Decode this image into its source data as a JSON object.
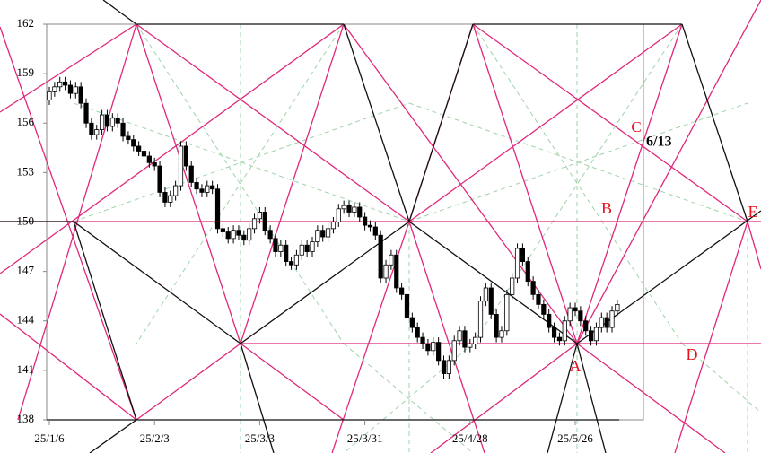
{
  "chart_data": {
    "type": "candlestick",
    "categories": [
      "25/1/6",
      null,
      null,
      null,
      null,
      null,
      null,
      null,
      null,
      null,
      null,
      null,
      null,
      null,
      null,
      null,
      null,
      null,
      null,
      null,
      "25/2/3",
      null,
      null,
      null,
      null,
      null,
      null,
      null,
      null,
      null,
      null,
      null,
      null,
      null,
      null,
      null,
      null,
      null,
      null,
      null,
      "25/3/3",
      null,
      null,
      null,
      null,
      null,
      null,
      null,
      null,
      null,
      null,
      null,
      null,
      null,
      null,
      null,
      null,
      null,
      null,
      null,
      "25/3/31",
      null,
      null,
      null,
      null,
      null,
      null,
      null,
      null,
      null,
      null,
      null,
      null,
      null,
      null,
      null,
      null,
      null,
      null,
      null,
      "25/4/28",
      null,
      null,
      null,
      null,
      null,
      null,
      null,
      null,
      null,
      null,
      null,
      null,
      null,
      null,
      null,
      null,
      null,
      null,
      null,
      "25/5/26",
      null,
      null,
      null,
      null,
      null,
      null,
      null,
      null
    ],
    "open": [
      157.4,
      157.9,
      158.2,
      158.5,
      158.3,
      157.8,
      158.2,
      157.2,
      156.0,
      155.3,
      155.6,
      156.5,
      155.8,
      156.3,
      156.0,
      155.2,
      155.0,
      154.6,
      154.3,
      154.0,
      153.6,
      153.4,
      151.8,
      151.2,
      151.6,
      152.2,
      154.6,
      153.4,
      152.4,
      152.0,
      151.8,
      152.2,
      152.0,
      149.6,
      149.4,
      149.0,
      149.5,
      149.2,
      148.9,
      149.6,
      150.2,
      150.6,
      149.5,
      149.0,
      148.2,
      148.6,
      147.6,
      147.4,
      148.0,
      148.6,
      148.2,
      148.8,
      149.5,
      149.1,
      149.6,
      150.0,
      150.8,
      151.0,
      150.6,
      150.9,
      150.3,
      149.8,
      149.7,
      149.2,
      146.6,
      147.4,
      148.0,
      146.0,
      145.6,
      144.2,
      143.6,
      143.0,
      142.6,
      142.2,
      142.7,
      141.6,
      140.8,
      141.6,
      142.8,
      143.4,
      142.4,
      142.6,
      143.0,
      145.2,
      146.0,
      144.4,
      143.0,
      143.4,
      145.6,
      146.6,
      148.4,
      147.6,
      146.4,
      145.6,
      145.0,
      144.4,
      143.6,
      143.0,
      142.8,
      144.0,
      144.8,
      144.6,
      144.0,
      143.4,
      142.8,
      143.6,
      144.2,
      143.6,
      144.6
    ],
    "high": [
      158.2,
      158.5,
      158.8,
      158.8,
      158.6,
      158.5,
      158.5,
      157.5,
      156.3,
      155.9,
      156.8,
      156.8,
      156.6,
      156.6,
      156.3,
      155.5,
      155.3,
      154.9,
      154.6,
      154.3,
      153.9,
      153.7,
      152.1,
      151.9,
      152.5,
      154.9,
      154.9,
      153.7,
      152.7,
      152.3,
      152.5,
      152.5,
      152.3,
      149.9,
      149.7,
      149.8,
      149.8,
      149.5,
      149.9,
      150.5,
      150.9,
      150.9,
      149.8,
      149.3,
      148.9,
      148.9,
      147.9,
      148.3,
      148.9,
      148.9,
      149.1,
      149.8,
      149.8,
      149.9,
      150.3,
      151.1,
      151.3,
      151.3,
      151.2,
      151.2,
      150.6,
      150.1,
      150.0,
      149.5,
      147.7,
      148.3,
      148.3,
      146.3,
      145.9,
      144.5,
      143.9,
      143.3,
      142.9,
      143.0,
      143.0,
      141.9,
      141.9,
      143.1,
      143.7,
      143.7,
      142.9,
      143.3,
      145.5,
      146.3,
      146.3,
      144.7,
      143.7,
      145.9,
      146.9,
      148.7,
      148.7,
      147.9,
      146.7,
      145.9,
      145.3,
      144.7,
      143.9,
      143.3,
      144.3,
      145.1,
      145.1,
      144.9,
      144.3,
      143.7,
      143.9,
      144.5,
      144.5,
      144.9,
      145.3
    ],
    "low": [
      157.1,
      157.6,
      157.9,
      158.0,
      157.5,
      157.5,
      156.9,
      155.7,
      155.0,
      155.0,
      155.3,
      155.5,
      155.5,
      155.7,
      154.9,
      154.7,
      154.3,
      154.0,
      153.7,
      153.3,
      153.1,
      151.5,
      150.9,
      150.9,
      151.3,
      151.9,
      153.1,
      152.1,
      151.7,
      151.5,
      151.5,
      151.7,
      149.3,
      149.1,
      148.7,
      148.7,
      148.9,
      148.6,
      148.6,
      149.3,
      149.9,
      149.2,
      148.7,
      147.9,
      147.9,
      147.3,
      147.1,
      147.1,
      147.7,
      147.9,
      147.9,
      148.5,
      148.8,
      148.8,
      149.3,
      149.7,
      150.5,
      150.3,
      150.3,
      150.0,
      149.5,
      149.4,
      148.9,
      146.3,
      146.3,
      147.1,
      145.7,
      145.3,
      143.9,
      143.3,
      142.7,
      142.3,
      141.9,
      141.9,
      141.3,
      140.5,
      140.5,
      141.3,
      142.5,
      142.1,
      142.1,
      142.3,
      142.7,
      144.9,
      144.1,
      142.7,
      142.7,
      143.1,
      145.3,
      146.3,
      147.3,
      146.1,
      145.3,
      144.7,
      144.1,
      143.3,
      142.7,
      142.5,
      142.5,
      143.7,
      144.3,
      143.7,
      143.1,
      142.5,
      142.5,
      143.3,
      143.3,
      143.3,
      144.3
    ],
    "close": [
      157.9,
      158.2,
      158.5,
      158.3,
      157.8,
      158.2,
      157.2,
      156.0,
      155.3,
      155.6,
      156.5,
      155.8,
      156.3,
      156.0,
      155.2,
      155.0,
      154.6,
      154.3,
      154.0,
      153.6,
      153.4,
      151.8,
      151.2,
      151.6,
      152.2,
      154.6,
      153.4,
      152.4,
      152.0,
      151.8,
      152.2,
      152.0,
      149.6,
      149.4,
      149.0,
      149.5,
      149.2,
      148.9,
      149.6,
      150.2,
      150.6,
      149.5,
      149.0,
      148.2,
      148.6,
      147.6,
      147.4,
      148.0,
      148.6,
      148.2,
      148.8,
      149.5,
      149.1,
      149.6,
      150.0,
      150.8,
      151.0,
      150.6,
      150.9,
      150.3,
      149.8,
      149.7,
      149.2,
      146.6,
      147.4,
      148.0,
      146.0,
      145.6,
      144.2,
      143.6,
      143.0,
      142.6,
      142.2,
      142.7,
      141.6,
      140.8,
      141.6,
      142.8,
      143.4,
      142.4,
      142.6,
      143.0,
      145.2,
      146.0,
      144.4,
      143.0,
      143.4,
      145.6,
      146.6,
      148.4,
      147.6,
      146.4,
      145.6,
      145.0,
      144.4,
      143.6,
      143.0,
      142.8,
      144.0,
      144.8,
      144.6,
      144.0,
      143.4,
      142.8,
      143.6,
      144.2,
      143.6,
      144.6,
      145.0
    ],
    "up_color": "#ffffff",
    "down_color": "#000000",
    "ylim": [
      138,
      162
    ],
    "yticks": [
      138,
      141,
      144,
      147,
      150,
      153,
      156,
      159,
      162
    ],
    "annotations": [
      {
        "text": "C",
        "color": "#e8101a"
      },
      {
        "text": "6/13",
        "color": "#000000"
      },
      {
        "text": "B",
        "color": "#e8101a"
      },
      {
        "text": "E",
        "color": "#e8101a"
      },
      {
        "text": "A",
        "color": "#e8101a"
      },
      {
        "text": "D",
        "color": "#e8101a"
      }
    ]
  }
}
